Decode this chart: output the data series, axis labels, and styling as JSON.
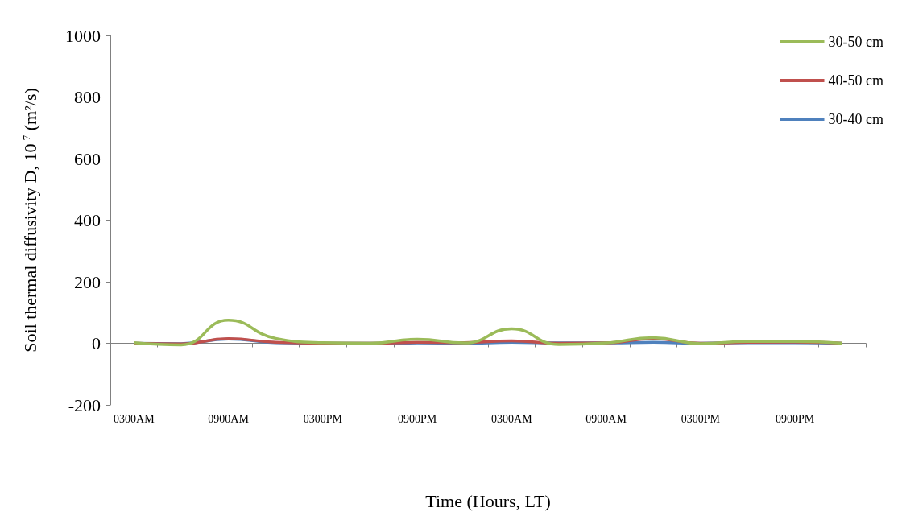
{
  "chart_data": {
    "type": "line",
    "xlabel": "Time (Hours, LT)",
    "ylabel": "Soil thermal diffusivity D, 10$^{-7}$ (m²/s)",
    "categories": [
      "0300AM",
      null,
      "0900AM",
      null,
      "0300PM",
      null,
      "0900PM",
      null,
      "0300AM",
      null,
      "0900AM",
      null,
      "0300PM",
      null,
      "0900PM",
      null
    ],
    "series": [
      {
        "name": "30-50 cm",
        "color": "#9bbb59",
        "values": [
          2,
          -5,
          75,
          16,
          2,
          0,
          13,
          1,
          47,
          -4,
          1,
          18,
          -1,
          6,
          6,
          0
        ]
      },
      {
        "name": "40-50 cm",
        "color": "#c0504d",
        "values": [
          0,
          -2,
          15,
          3,
          0,
          0,
          3,
          2,
          8,
          0,
          1,
          15,
          0,
          3,
          4,
          0
        ]
      },
      {
        "name": "30-40 cm",
        "color": "#4f81bd",
        "values": [
          0,
          -1,
          14,
          2,
          0,
          0,
          1,
          0,
          3,
          1,
          1,
          3,
          0,
          2,
          2,
          0
        ]
      }
    ],
    "ylim": [
      -200,
      1000
    ],
    "yticks": [
      -200,
      0,
      200,
      400,
      600,
      800,
      1000
    ],
    "legend": "top right"
  }
}
